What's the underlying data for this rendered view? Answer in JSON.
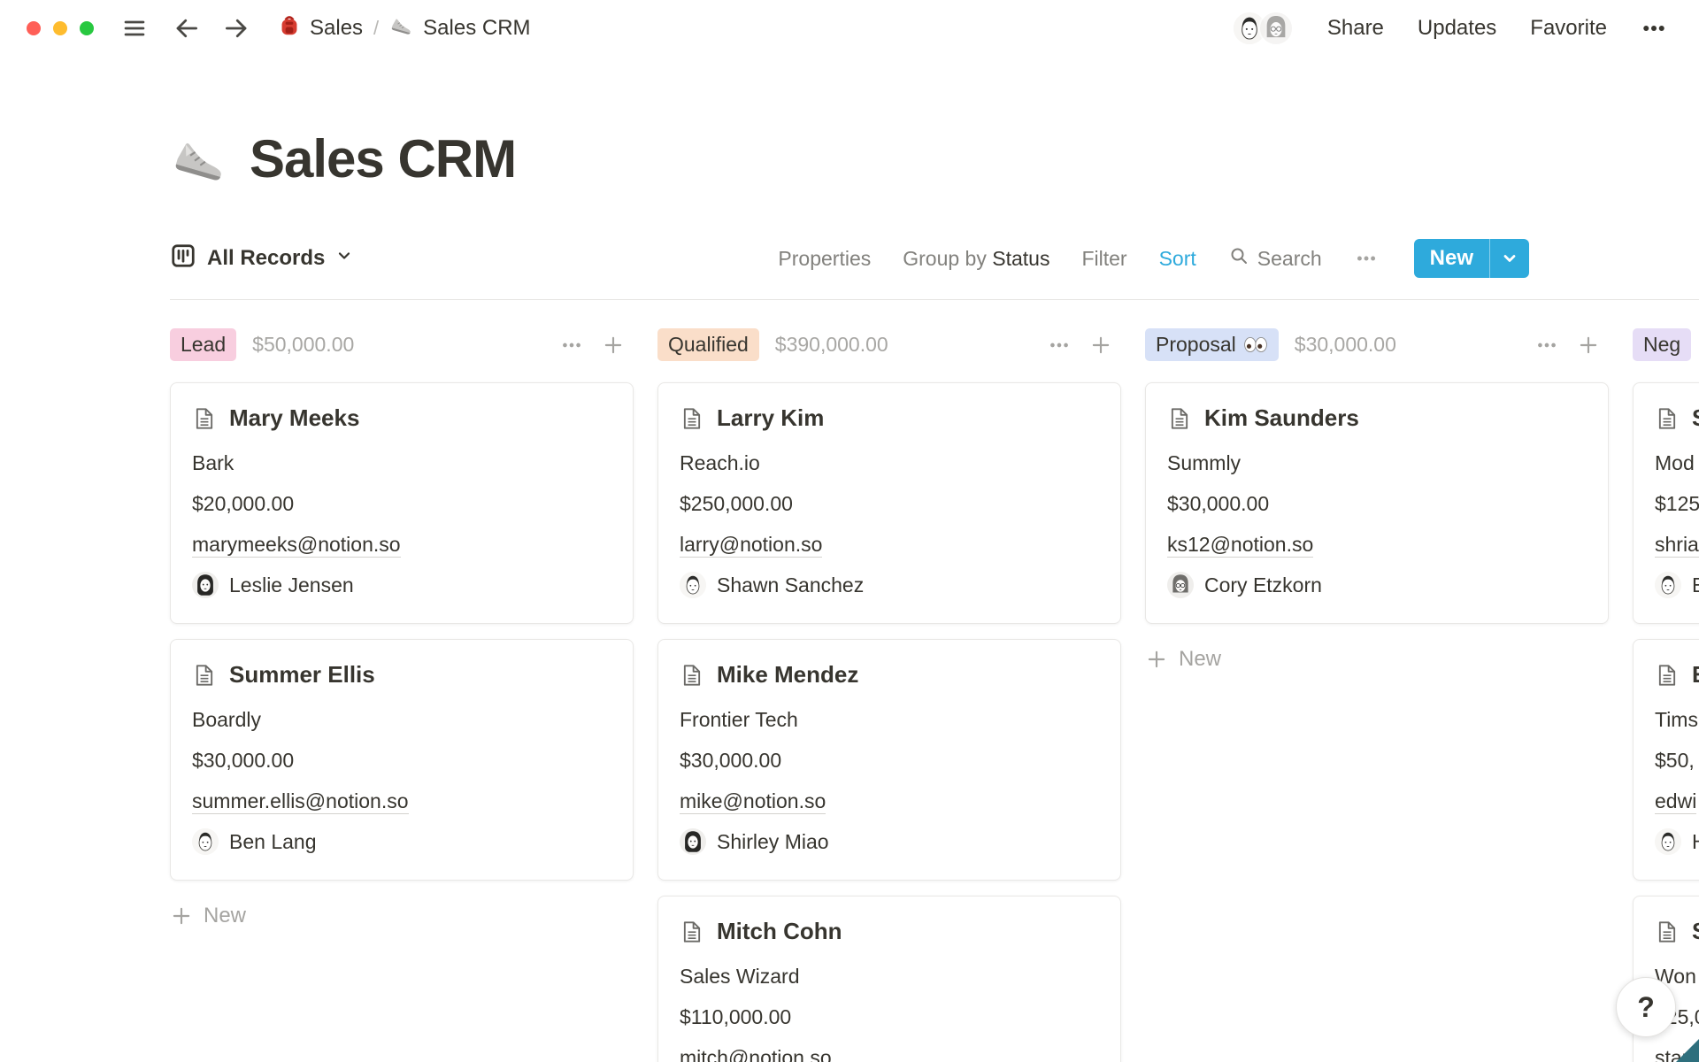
{
  "topbar": {
    "traffic_lights": [
      "#FF5F57",
      "#FEBC2E",
      "#28C840"
    ],
    "breadcrumb": {
      "root": {
        "icon": "backpack-icon",
        "label": "Sales"
      },
      "separator": "/",
      "current": {
        "icon": "sneaker-icon",
        "label": "Sales CRM"
      }
    },
    "avatars": [
      {
        "name": "workspace-member-1",
        "avatar": "short-hair"
      },
      {
        "name": "workspace-member-2",
        "avatar": "glasses"
      }
    ],
    "actions": {
      "share": "Share",
      "updates": "Updates",
      "favorite": "Favorite"
    }
  },
  "page": {
    "icon": "sneaker-icon",
    "title": "Sales CRM"
  },
  "toolbar": {
    "view_selector": {
      "icon": "board-view-icon",
      "label": "All Records"
    },
    "properties": "Properties",
    "group_by_label": "Group by",
    "group_by_value": "Status",
    "filter": "Filter",
    "sort": "Sort",
    "search": "Search",
    "new_button": "New",
    "accent_color": "#2EAADC"
  },
  "board": {
    "add_card_label": "New",
    "columns": [
      {
        "name": "Lead",
        "badge_color": "#F8CEDF",
        "sum": "$50,000.00",
        "show_new_button": true,
        "cards": [
          {
            "title": "Mary Meeks",
            "company": "Bark",
            "value": "$20,000.00",
            "email": "marymeeks@notion.so",
            "person": {
              "name": "Leslie Jensen",
              "avatar": "long-hair"
            }
          },
          {
            "title": "Summer Ellis",
            "company": "Boardly",
            "value": "$30,000.00",
            "email": "summer.ellis@notion.so",
            "person": {
              "name": "Ben Lang",
              "avatar": "short-hair"
            }
          }
        ]
      },
      {
        "name": "Qualified",
        "badge_color": "#FADEC9",
        "sum": "$390,000.00",
        "show_new_button": false,
        "cards": [
          {
            "title": "Larry Kim",
            "company": "Reach.io",
            "value": "$250,000.00",
            "email": "larry@notion.so",
            "person": {
              "name": "Shawn Sanchez",
              "avatar": "short-hair"
            }
          },
          {
            "title": "Mike Mendez",
            "company": "Frontier Tech",
            "value": "$30,000.00",
            "email": "mike@notion.so",
            "person": {
              "name": "Shirley Miao",
              "avatar": "long-hair"
            }
          },
          {
            "title": "Mitch Cohn",
            "company": "Sales Wizard",
            "value": "$110,000.00",
            "email": "mitch@notion.so",
            "person": null
          }
        ]
      },
      {
        "name": "Proposal",
        "badge_emoji": "eyes-icon",
        "badge_color": "#D7E1F7",
        "sum": "$30,000.00",
        "show_new_button": true,
        "cards": [
          {
            "title": "Kim Saunders",
            "company": "Summly",
            "value": "$30,000.00",
            "email": "ks12@notion.so",
            "person": {
              "name": "Cory Etzkorn",
              "avatar": "glasses"
            }
          }
        ]
      },
      {
        "name": "Neg",
        "badge_color": "#E6DDF6",
        "sum": "",
        "show_new_button": false,
        "cards": [
          {
            "title": "S",
            "company": "Mod",
            "value": "$125",
            "email": "shria",
            "person": {
              "name": "E",
              "avatar": "short-hair"
            }
          },
          {
            "title": "E",
            "company": "Tims",
            "value": "$50,",
            "email": "edwi",
            "person": {
              "name": "H",
              "avatar": "short-hair"
            }
          },
          {
            "title": "S",
            "company": "Won",
            "value": "$25,0",
            "email": "stan",
            "person": null
          }
        ]
      }
    ]
  },
  "help_button": "?"
}
